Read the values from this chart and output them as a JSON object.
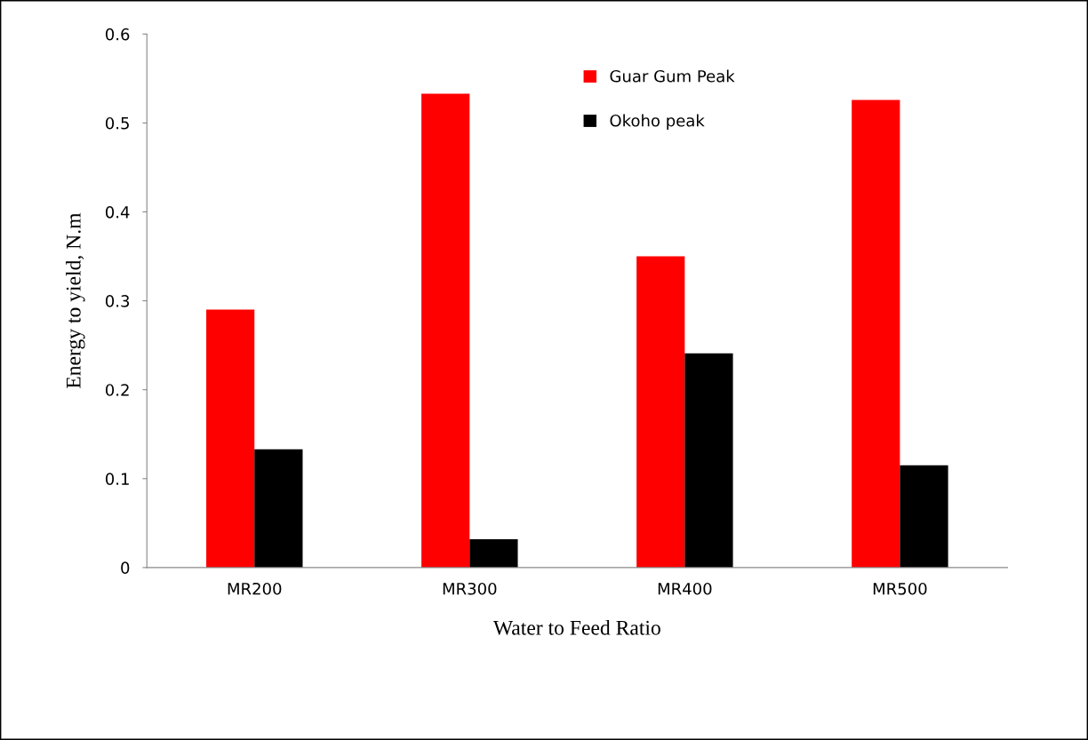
{
  "chart_data": {
    "type": "bar",
    "xlabel": "Water to Feed Ratio",
    "ylabel": "Energy to yield, N.m",
    "categories": [
      "MR200",
      "MR300",
      "MR400",
      "MR500"
    ],
    "series": [
      {
        "name": "Guar Gum Peak",
        "color": "#ff0000",
        "values": [
          0.29,
          0.533,
          0.35,
          0.526
        ]
      },
      {
        "name": "Okoho peak",
        "color": "#000000",
        "values": [
          0.133,
          0.032,
          0.241,
          0.115
        ]
      }
    ],
    "ylim": [
      0,
      0.6
    ],
    "yticks": [
      {
        "value": 0,
        "label": "0"
      },
      0.1,
      0.2,
      0.3,
      0.4,
      0.5,
      0.6
    ],
    "grid": false,
    "legend": "top right"
  }
}
